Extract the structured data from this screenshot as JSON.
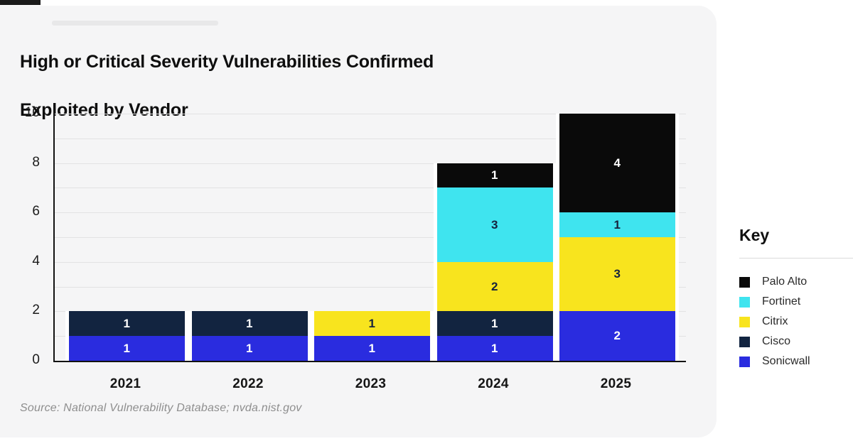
{
  "page": {
    "title_lines": [
      "High or Critical Severity Vulnerabilities Confirmed",
      "Exploited by Vendor"
    ],
    "source_note": "Source: National Vulnerability Database; nvda.nist.gov"
  },
  "chart_data": {
    "type": "bar",
    "stacked": true,
    "title": "High or Critical Severity Vulnerabilities Confirmed Exploited by Vendor",
    "xlabel": "",
    "ylabel": "",
    "categories": [
      "2021",
      "2022",
      "2023",
      "2024",
      "2025"
    ],
    "series_bottom_to_top": [
      {
        "name": "Sonicwall",
        "color": "#2a2cdf",
        "label_color": "#ffffff",
        "values": [
          1,
          1,
          1,
          1,
          2
        ]
      },
      {
        "name": "Cisco",
        "color": "#122440",
        "label_color": "#ffffff",
        "values": [
          1,
          1,
          0,
          1,
          0
        ]
      },
      {
        "name": "Citrix",
        "color": "#f8e41e",
        "label_color": "#16233d",
        "values": [
          0,
          0,
          1,
          2,
          3
        ]
      },
      {
        "name": "Fortinet",
        "color": "#3fe4ef",
        "label_color": "#16233d",
        "values": [
          0,
          0,
          0,
          3,
          1
        ]
      },
      {
        "name": "Palo Alto",
        "color": "#0a0a0a",
        "label_color": "#ffffff",
        "values": [
          0,
          0,
          0,
          1,
          4
        ]
      }
    ],
    "totals": [
      2,
      2,
      2,
      8,
      10
    ],
    "ylim": [
      0,
      10
    ],
    "yticks": [
      0,
      2,
      4,
      6,
      8,
      10
    ],
    "gridline_step": 1,
    "grid": true,
    "legend": {
      "title": "Key",
      "position": "right",
      "entries_top_to_bottom": [
        "Palo Alto",
        "Fortinet",
        "Citrix",
        "Cisco",
        "Sonicwall"
      ]
    },
    "source": "Source: National Vulnerability Database; nvda.nist.gov"
  },
  "colors": {
    "card_background": "#f5f5f6",
    "gridline": "#e2e2e3",
    "axis": "#121212",
    "legend_divider": "#dbdbdb",
    "source_text": "#8e8e8e"
  }
}
